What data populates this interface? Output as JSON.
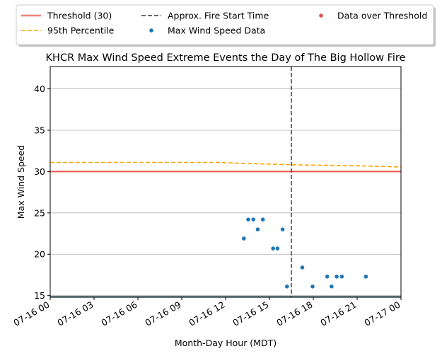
{
  "chart_data": {
    "type": "scatter",
    "title": "KHCR Max Wind Speed Extreme Events the Day of The Big Hollow Fire",
    "xlabel": "Month-Day Hour (MDT)",
    "ylabel": "Max Wind Speed",
    "x_range_hours": [
      0,
      24
    ],
    "ylim": [
      14.8,
      42.7
    ],
    "x_ticks": [
      {
        "hour": 0,
        "label": "07-16 00"
      },
      {
        "hour": 3,
        "label": "07-16 03"
      },
      {
        "hour": 6,
        "label": "07-16 06"
      },
      {
        "hour": 9,
        "label": "07-16 09"
      },
      {
        "hour": 12,
        "label": "07-16 12"
      },
      {
        "hour": 15,
        "label": "07-16 15"
      },
      {
        "hour": 18,
        "label": "07-16 18"
      },
      {
        "hour": 21,
        "label": "07-16 21"
      },
      {
        "hour": 24,
        "label": "07-17 00"
      }
    ],
    "y_ticks": [
      15,
      20,
      25,
      30,
      35,
      40
    ],
    "grid": "horizontal",
    "legend_placement": "top-center-outside",
    "legend": [
      {
        "label": "Threshold (30)",
        "kind": "line",
        "color": "#f08080"
      },
      {
        "label": "95th Percentile",
        "kind": "dashed",
        "color": "#ffa500"
      },
      {
        "label": "Approx. Fire Start Time",
        "kind": "dashed",
        "color": "#333333"
      },
      {
        "label": "Max Wind Speed Data",
        "kind": "dot",
        "color": "#1f77b4"
      },
      {
        "label": "Data over Threshold",
        "kind": "dot",
        "color": "#d9534f"
      }
    ],
    "threshold": {
      "y": 30,
      "color": "#e8504a"
    },
    "percentile_95": {
      "color": "#ffa500",
      "x": [
        0,
        4,
        8,
        11.5,
        13,
        15,
        17,
        19,
        21,
        24
      ],
      "y": [
        31.1,
        31.1,
        31.1,
        31.1,
        31.0,
        30.9,
        30.8,
        30.75,
        30.7,
        30.55
      ]
    },
    "fire_start_hour": 16.5,
    "series": [
      {
        "name": "Max Wind Speed Data",
        "color": "#1f77b4",
        "x": [
          13.25,
          13.55,
          13.9,
          14.2,
          14.55,
          15.25,
          15.55,
          15.9,
          16.2,
          17.25,
          17.95,
          18.95,
          19.25,
          19.6,
          19.95,
          21.6
        ],
        "y": [
          21.9,
          24.2,
          24.2,
          23.0,
          24.2,
          20.7,
          20.7,
          23.0,
          16.1,
          18.4,
          16.1,
          17.3,
          16.1,
          17.3,
          17.3,
          17.3
        ]
      }
    ]
  }
}
